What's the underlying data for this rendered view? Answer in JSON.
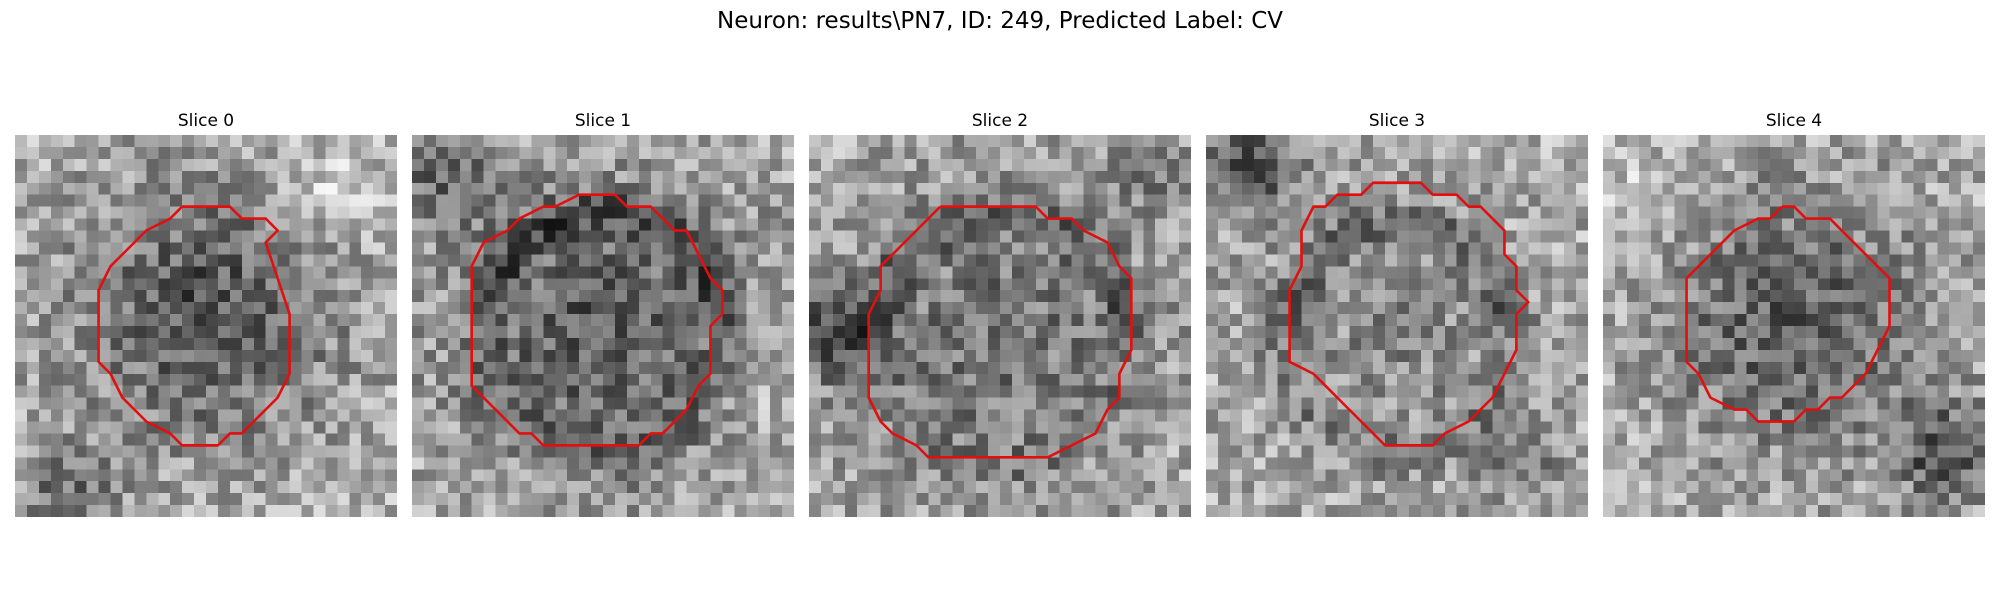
{
  "figure": {
    "title": "Neuron: results\\PN7, ID: 249, Predicted Label: CV",
    "contour_color": "#e01010",
    "colormap": "gray",
    "grid_size": 32
  },
  "slices": [
    {
      "title": "Slice 0",
      "contour": [
        [
          14,
          6
        ],
        [
          18,
          6
        ],
        [
          19,
          7
        ],
        [
          21,
          7
        ],
        [
          22,
          8
        ],
        [
          21,
          9
        ],
        [
          22,
          12
        ],
        [
          23,
          15
        ],
        [
          23,
          20
        ],
        [
          22,
          22
        ],
        [
          20,
          24
        ],
        [
          19,
          25
        ],
        [
          18,
          25
        ],
        [
          17,
          26
        ],
        [
          14,
          26
        ],
        [
          13,
          25
        ],
        [
          11,
          24
        ],
        [
          9,
          22
        ],
        [
          8,
          20
        ],
        [
          7,
          19
        ],
        [
          7,
          13
        ],
        [
          8,
          11
        ],
        [
          9,
          10
        ],
        [
          11,
          8
        ],
        [
          13,
          7
        ],
        [
          14,
          6
        ]
      ]
    },
    {
      "title": "Slice 1",
      "contour": [
        [
          15,
          5
        ],
        [
          17,
          5
        ],
        [
          18,
          6
        ],
        [
          20,
          6
        ],
        [
          22,
          8
        ],
        [
          23,
          8
        ],
        [
          24,
          10
        ],
        [
          25,
          12
        ],
        [
          26,
          13
        ],
        [
          26,
          15
        ],
        [
          25,
          16
        ],
        [
          25,
          20
        ],
        [
          24,
          21
        ],
        [
          23,
          23
        ],
        [
          21,
          25
        ],
        [
          20,
          25
        ],
        [
          19,
          26
        ],
        [
          11,
          26
        ],
        [
          10,
          25
        ],
        [
          9,
          25
        ],
        [
          7,
          23
        ],
        [
          5,
          21
        ],
        [
          5,
          20
        ],
        [
          5,
          19
        ],
        [
          5,
          11
        ],
        [
          6,
          9
        ],
        [
          8,
          8
        ],
        [
          9,
          7
        ],
        [
          11,
          6
        ],
        [
          12,
          6
        ],
        [
          14,
          5
        ],
        [
          15,
          5
        ]
      ]
    },
    {
      "title": "Slice 2",
      "contour": [
        [
          11,
          6
        ],
        [
          19,
          6
        ],
        [
          20,
          7
        ],
        [
          22,
          7
        ],
        [
          23,
          8
        ],
        [
          25,
          9
        ],
        [
          26,
          11
        ],
        [
          27,
          12
        ],
        [
          27,
          18
        ],
        [
          26,
          20
        ],
        [
          26,
          22
        ],
        [
          25,
          23
        ],
        [
          24,
          25
        ],
        [
          22,
          26
        ],
        [
          20,
          27
        ],
        [
          10,
          27
        ],
        [
          9,
          26
        ],
        [
          7,
          25
        ],
        [
          6,
          24
        ],
        [
          5,
          22
        ],
        [
          5,
          20
        ],
        [
          5,
          19
        ],
        [
          5,
          18
        ],
        [
          5,
          15
        ],
        [
          6,
          13
        ],
        [
          6,
          11
        ],
        [
          7,
          10
        ],
        [
          8,
          9
        ],
        [
          9,
          8
        ],
        [
          10,
          7
        ],
        [
          11,
          6
        ]
      ]
    },
    {
      "title": "Slice 3",
      "contour": [
        [
          15,
          4
        ],
        [
          18,
          4
        ],
        [
          19,
          5
        ],
        [
          21,
          5
        ],
        [
          22,
          6
        ],
        [
          23,
          6
        ],
        [
          24,
          7
        ],
        [
          25,
          8
        ],
        [
          25,
          10
        ],
        [
          26,
          11
        ],
        [
          26,
          13
        ],
        [
          27,
          14
        ],
        [
          26,
          15
        ],
        [
          26,
          18
        ],
        [
          25,
          20
        ],
        [
          24,
          22
        ],
        [
          23,
          23
        ],
        [
          22,
          24
        ],
        [
          20,
          25
        ],
        [
          19,
          26
        ],
        [
          15,
          26
        ],
        [
          14,
          25
        ],
        [
          13,
          24
        ],
        [
          11,
          22
        ],
        [
          10,
          21
        ],
        [
          9,
          20
        ],
        [
          7,
          19
        ],
        [
          7,
          13
        ],
        [
          8,
          11
        ],
        [
          8,
          8
        ],
        [
          9,
          6
        ],
        [
          10,
          6
        ],
        [
          11,
          5
        ],
        [
          13,
          5
        ],
        [
          14,
          4
        ],
        [
          15,
          4
        ]
      ]
    },
    {
      "title": "Slice 4",
      "contour": [
        [
          15,
          6
        ],
        [
          16,
          6
        ],
        [
          17,
          7
        ],
        [
          19,
          7
        ],
        [
          20,
          8
        ],
        [
          21,
          9
        ],
        [
          22,
          10
        ],
        [
          23,
          11
        ],
        [
          24,
          12
        ],
        [
          24,
          16
        ],
        [
          23,
          18
        ],
        [
          22,
          20
        ],
        [
          21,
          21
        ],
        [
          20,
          22
        ],
        [
          19,
          22
        ],
        [
          18,
          23
        ],
        [
          17,
          23
        ],
        [
          16,
          24
        ],
        [
          13,
          24
        ],
        [
          12,
          23
        ],
        [
          11,
          23
        ],
        [
          9,
          22
        ],
        [
          8,
          20
        ],
        [
          7,
          19
        ],
        [
          7,
          18
        ],
        [
          7,
          12
        ],
        [
          8,
          11
        ],
        [
          9,
          10
        ],
        [
          10,
          9
        ],
        [
          11,
          8
        ],
        [
          13,
          7
        ],
        [
          14,
          7
        ],
        [
          15,
          6
        ]
      ]
    }
  ]
}
